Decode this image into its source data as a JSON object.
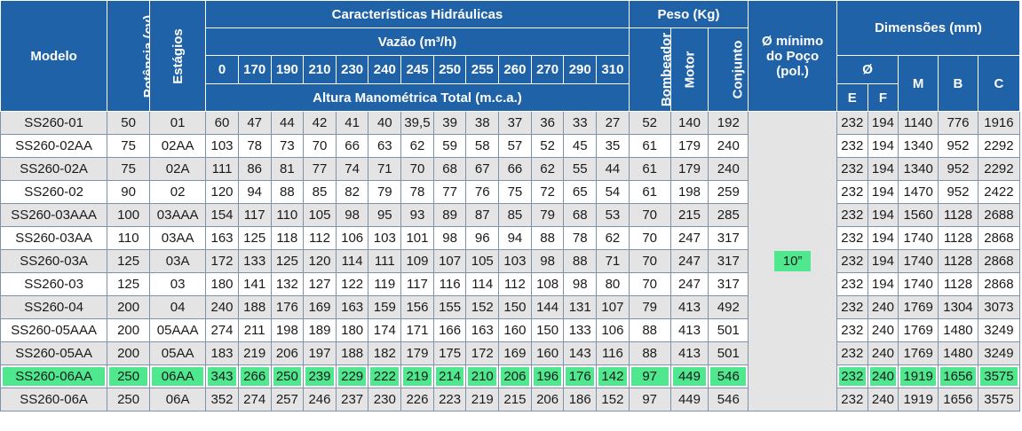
{
  "headers": {
    "modelo": "Modelo",
    "potencia": "Potência (cv)",
    "estagios": "Estágios",
    "caracteristicas": "Características Hidráulicas",
    "vazao": "Vazão (m³/h)",
    "altura": "Altura Manométrica Total (m.c.a.)",
    "peso": "Peso (Kg)",
    "bombeador": "Bombeador",
    "motor": "Motor",
    "conjunto": "Conjunto",
    "poco_line1": "Ø mínimo",
    "poco_line2": "do Poço",
    "poco_line3": "(pol.)",
    "dimensoes": "Dimensões (mm)",
    "diam": "Ø",
    "e": "E",
    "f": "F",
    "m": "M",
    "b": "B",
    "c": "C"
  },
  "flows": [
    "0",
    "170",
    "190",
    "210",
    "230",
    "240",
    "245",
    "250",
    "255",
    "260",
    "270",
    "290",
    "310"
  ],
  "min_well": "10”",
  "highlight_color": "#4fe88e",
  "header_color": "#1f62a8",
  "rows": [
    {
      "model": "SS260-01",
      "pot": "50",
      "est": "01",
      "h": [
        "60",
        "47",
        "44",
        "42",
        "41",
        "40",
        "39,5",
        "39",
        "38",
        "37",
        "36",
        "33",
        "27"
      ],
      "bomb": "52",
      "motor": "140",
      "conj": "192",
      "e": "232",
      "f": "194",
      "m": "1140",
      "b": "776",
      "c": "1916"
    },
    {
      "model": "SS260-02AA",
      "pot": "75",
      "est": "02AA",
      "h": [
        "103",
        "78",
        "73",
        "70",
        "66",
        "63",
        "62",
        "59",
        "58",
        "57",
        "52",
        "45",
        "35"
      ],
      "bomb": "61",
      "motor": "179",
      "conj": "240",
      "e": "232",
      "f": "194",
      "m": "1340",
      "b": "952",
      "c": "2292"
    },
    {
      "model": "SS260-02A",
      "pot": "75",
      "est": "02A",
      "h": [
        "111",
        "86",
        "81",
        "77",
        "74",
        "71",
        "70",
        "68",
        "67",
        "66",
        "62",
        "55",
        "44"
      ],
      "bomb": "61",
      "motor": "179",
      "conj": "240",
      "e": "232",
      "f": "194",
      "m": "1340",
      "b": "952",
      "c": "2292"
    },
    {
      "model": "SS260-02",
      "pot": "90",
      "est": "02",
      "h": [
        "120",
        "94",
        "88",
        "85",
        "82",
        "79",
        "78",
        "77",
        "76",
        "75",
        "72",
        "65",
        "54"
      ],
      "bomb": "61",
      "motor": "198",
      "conj": "259",
      "e": "232",
      "f": "194",
      "m": "1470",
      "b": "952",
      "c": "2422"
    },
    {
      "model": "SS260-03AAA",
      "pot": "100",
      "est": "03AAA",
      "h": [
        "154",
        "117",
        "110",
        "105",
        "98",
        "95",
        "93",
        "89",
        "87",
        "85",
        "79",
        "68",
        "53"
      ],
      "bomb": "70",
      "motor": "215",
      "conj": "285",
      "e": "232",
      "f": "194",
      "m": "1560",
      "b": "1128",
      "c": "2688"
    },
    {
      "model": "SS260-03AA",
      "pot": "110",
      "est": "03AA",
      "h": [
        "163",
        "125",
        "118",
        "112",
        "106",
        "103",
        "101",
        "98",
        "96",
        "94",
        "88",
        "78",
        "62"
      ],
      "bomb": "70",
      "motor": "247",
      "conj": "317",
      "e": "232",
      "f": "194",
      "m": "1740",
      "b": "1128",
      "c": "2868"
    },
    {
      "model": "SS260-03A",
      "pot": "125",
      "est": "03A",
      "h": [
        "172",
        "133",
        "125",
        "120",
        "114",
        "111",
        "109",
        "107",
        "105",
        "103",
        "98",
        "88",
        "71"
      ],
      "bomb": "70",
      "motor": "247",
      "conj": "317",
      "e": "232",
      "f": "194",
      "m": "1740",
      "b": "1128",
      "c": "2868"
    },
    {
      "model": "SS260-03",
      "pot": "125",
      "est": "03",
      "h": [
        "180",
        "141",
        "132",
        "127",
        "122",
        "119",
        "117",
        "116",
        "114",
        "112",
        "108",
        "98",
        "80"
      ],
      "bomb": "70",
      "motor": "247",
      "conj": "317",
      "e": "232",
      "f": "194",
      "m": "1740",
      "b": "1128",
      "c": "2868"
    },
    {
      "model": "SS260-04",
      "pot": "200",
      "est": "04",
      "h": [
        "240",
        "188",
        "176",
        "169",
        "163",
        "159",
        "156",
        "155",
        "152",
        "150",
        "144",
        "131",
        "107"
      ],
      "bomb": "79",
      "motor": "413",
      "conj": "492",
      "e": "232",
      "f": "240",
      "m": "1769",
      "b": "1304",
      "c": "3073"
    },
    {
      "model": "SS260-05AAA",
      "pot": "200",
      "est": "05AAA",
      "h": [
        "274",
        "211",
        "198",
        "189",
        "180",
        "174",
        "171",
        "166",
        "163",
        "160",
        "150",
        "133",
        "106"
      ],
      "bomb": "88",
      "motor": "413",
      "conj": "501",
      "e": "232",
      "f": "240",
      "m": "1769",
      "b": "1480",
      "c": "3249"
    },
    {
      "model": "SS260-05AA",
      "pot": "200",
      "est": "05AA",
      "h": [
        "183",
        "219",
        "206",
        "197",
        "188",
        "182",
        "179",
        "175",
        "172",
        "169",
        "160",
        "143",
        "116"
      ],
      "bomb": "88",
      "motor": "413",
      "conj": "501",
      "e": "232",
      "f": "240",
      "m": "1769",
      "b": "1480",
      "c": "3249"
    },
    {
      "model": "SS260-06AA",
      "pot": "250",
      "est": "06AA",
      "h": [
        "343",
        "266",
        "250",
        "239",
        "229",
        "222",
        "219",
        "214",
        "210",
        "206",
        "196",
        "176",
        "142"
      ],
      "bomb": "97",
      "motor": "449",
      "conj": "546",
      "e": "232",
      "f": "240",
      "m": "1919",
      "b": "1656",
      "c": "3575",
      "highlighted": true
    },
    {
      "model": "SS260-06A",
      "pot": "250",
      "est": "06A",
      "h": [
        "352",
        "274",
        "257",
        "246",
        "237",
        "230",
        "226",
        "223",
        "219",
        "215",
        "206",
        "186",
        "152"
      ],
      "bomb": "97",
      "motor": "449",
      "conj": "546",
      "e": "232",
      "f": "240",
      "m": "1919",
      "b": "1656",
      "c": "3575"
    }
  ]
}
